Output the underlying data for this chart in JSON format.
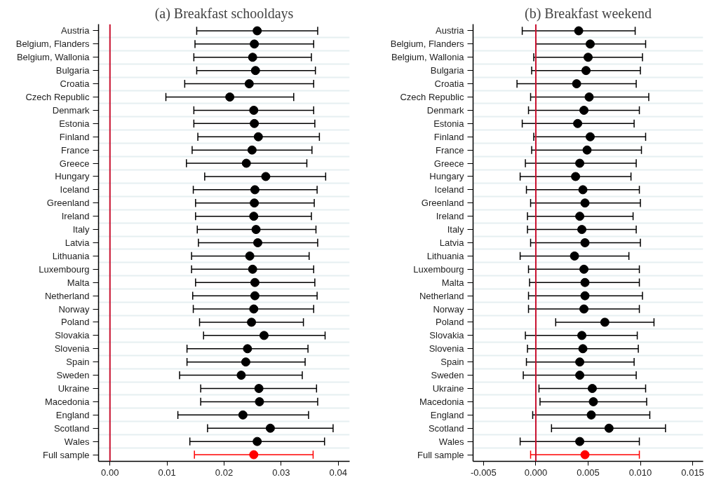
{
  "chart_data": [
    {
      "type": "scatter",
      "orientation": "horizontal",
      "title": "(a) Breakfast schooldays",
      "marker": "circle",
      "grid": "y",
      "categories": [
        "Austria",
        "Belgium, Flanders",
        "Belgium, Wallonia",
        "Bulgaria",
        "Croatia",
        "Czech Republic",
        "Denmark",
        "Estonia",
        "Finland",
        "France",
        "Greece",
        "Hungary",
        "Iceland",
        "Greenland",
        "Ireland",
        "Italy",
        "Latvia",
        "Lithuania",
        "Luxembourg",
        "Malta",
        "Netherland",
        "Norway",
        "Poland",
        "Slovakia",
        "Slovenia",
        "Spain",
        "Sweden",
        "Ukraine",
        "Macedonia",
        "England",
        "Scotland",
        "Wales",
        "Full sample"
      ],
      "series": [
        {
          "color": "#000000",
          "values": [
            0.0258,
            0.0253,
            0.025,
            0.0255,
            0.0244,
            0.021,
            0.0252,
            0.0253,
            0.026,
            0.0249,
            0.0239,
            0.0273,
            0.0254,
            0.0253,
            0.0252,
            0.0256,
            0.0259,
            0.0245,
            0.025,
            0.0254,
            0.0254,
            0.0252,
            0.0248,
            0.027,
            0.0241,
            0.0238,
            0.023,
            0.0261,
            0.0262,
            0.0233,
            0.0281,
            0.0258,
            null
          ],
          "errors": [
            [
              0.0152,
              0.0364
            ],
            [
              0.0149,
              0.0357
            ],
            [
              0.0147,
              0.0353
            ],
            [
              0.0152,
              0.036
            ],
            [
              0.0131,
              0.0357
            ],
            [
              0.0098,
              0.0322
            ],
            [
              0.0147,
              0.0357
            ],
            [
              0.0147,
              0.0359
            ],
            [
              0.0154,
              0.0367
            ],
            [
              0.0144,
              0.0354
            ],
            [
              0.0134,
              0.0345
            ],
            [
              0.0166,
              0.0378
            ],
            [
              0.0146,
              0.0363
            ],
            [
              0.015,
              0.0358
            ],
            [
              0.015,
              0.0353
            ],
            [
              0.0153,
              0.0361
            ],
            [
              0.0155,
              0.0364
            ],
            [
              0.0143,
              0.0349
            ],
            [
              0.0143,
              0.0357
            ],
            [
              0.015,
              0.0359
            ],
            [
              0.0145,
              0.0363
            ],
            [
              0.0146,
              0.0357
            ],
            [
              0.0157,
              0.0339
            ],
            [
              0.0164,
              0.0377
            ],
            [
              0.0135,
              0.0347
            ],
            [
              0.0135,
              0.0342
            ],
            [
              0.0122,
              0.0337
            ],
            [
              0.0159,
              0.0362
            ],
            [
              0.0159,
              0.0364
            ],
            [
              0.0119,
              0.0348
            ],
            [
              0.0171,
              0.0391
            ],
            [
              0.014,
              0.0376
            ],
            null
          ]
        },
        {
          "color": "#ff0000",
          "values": [
            null,
            null,
            null,
            null,
            null,
            null,
            null,
            null,
            null,
            null,
            null,
            null,
            null,
            null,
            null,
            null,
            null,
            null,
            null,
            null,
            null,
            null,
            null,
            null,
            null,
            null,
            null,
            null,
            null,
            null,
            null,
            null,
            0.0252
          ],
          "errors": [
            null,
            null,
            null,
            null,
            null,
            null,
            null,
            null,
            null,
            null,
            null,
            null,
            null,
            null,
            null,
            null,
            null,
            null,
            null,
            null,
            null,
            null,
            null,
            null,
            null,
            null,
            null,
            null,
            null,
            null,
            null,
            null,
            [
              0.0148,
              0.0356
            ]
          ]
        }
      ],
      "xlim": [
        -0.002,
        0.042
      ],
      "xticks": [
        {
          "value": 0,
          "label": "0.00"
        },
        0.01,
        0.02,
        0.03,
        0.04
      ],
      "ref_lines": [
        {
          "axis": "x",
          "value": 0,
          "color": "#c8102e"
        }
      ]
    },
    {
      "type": "scatter",
      "orientation": "horizontal",
      "title": "(b) Breakfast weekend",
      "marker": "circle",
      "grid": "y",
      "categories": [
        "Austria",
        "Belgium, Flanders",
        "Belgium, Wallonia",
        "Bulgaria",
        "Croatia",
        "Czech Republic",
        "Denmark",
        "Estonia",
        "Finland",
        "France",
        "Greece",
        "Hungary",
        "Iceland",
        "Greenland",
        "Ireland",
        "Italy",
        "Latvia",
        "Lithuania",
        "Luxembourg",
        "Malta",
        "Netherland",
        "Norway",
        "Poland",
        "Slovakia",
        "Slovenia",
        "Spain",
        "Sweden",
        "Ukraine",
        "Macedonia",
        "England",
        "Scotland",
        "Wales",
        "Full sample"
      ],
      "series": [
        {
          "color": "#000000",
          "values": [
            0.0041,
            0.0052,
            0.005,
            0.0048,
            0.0039,
            0.0051,
            0.0046,
            0.004,
            0.0052,
            0.0049,
            0.0042,
            0.0038,
            0.0045,
            0.0047,
            0.0042,
            0.0044,
            0.0047,
            0.0037,
            0.0046,
            0.0047,
            0.0047,
            0.0046,
            0.0066,
            0.0044,
            0.0045,
            0.0042,
            0.0042,
            0.0054,
            0.0055,
            0.0053,
            0.007,
            0.0042,
            null
          ],
          "errors": [
            [
              -0.0013,
              0.0095
            ],
            [
              0.0,
              0.0105
            ],
            [
              -0.0002,
              0.0102
            ],
            [
              -0.0004,
              0.01
            ],
            [
              -0.0018,
              0.0096
            ],
            [
              -0.0005,
              0.0108
            ],
            [
              -0.0007,
              0.0099
            ],
            [
              -0.0013,
              0.0094
            ],
            [
              -0.0002,
              0.0105
            ],
            [
              -0.0004,
              0.0101
            ],
            [
              -0.001,
              0.0096
            ],
            [
              -0.0015,
              0.0091
            ],
            [
              -0.0009,
              0.0099
            ],
            [
              -0.0005,
              0.01
            ],
            [
              -0.0008,
              0.0093
            ],
            [
              -0.0008,
              0.0096
            ],
            [
              -0.0005,
              0.01
            ],
            [
              -0.0015,
              0.0089
            ],
            [
              -0.0007,
              0.0099
            ],
            [
              -0.0006,
              0.0099
            ],
            [
              -0.0007,
              0.0102
            ],
            [
              -0.0007,
              0.0099
            ],
            [
              0.0019,
              0.0113
            ],
            [
              -0.001,
              0.0097
            ],
            [
              -0.0008,
              0.0098
            ],
            [
              -0.0009,
              0.0094
            ],
            [
              -0.0012,
              0.0096
            ],
            [
              0.0003,
              0.0105
            ],
            [
              0.0004,
              0.0106
            ],
            [
              -0.0003,
              0.0109
            ],
            [
              0.0015,
              0.0124
            ],
            [
              -0.0015,
              0.0099
            ],
            null
          ]
        },
        {
          "color": "#ff0000",
          "values": [
            null,
            null,
            null,
            null,
            null,
            null,
            null,
            null,
            null,
            null,
            null,
            null,
            null,
            null,
            null,
            null,
            null,
            null,
            null,
            null,
            null,
            null,
            null,
            null,
            null,
            null,
            null,
            null,
            null,
            null,
            null,
            null,
            0.0047
          ],
          "errors": [
            null,
            null,
            null,
            null,
            null,
            null,
            null,
            null,
            null,
            null,
            null,
            null,
            null,
            null,
            null,
            null,
            null,
            null,
            null,
            null,
            null,
            null,
            null,
            null,
            null,
            null,
            null,
            null,
            null,
            null,
            null,
            null,
            [
              -0.0005,
              0.0099
            ]
          ]
        }
      ],
      "xlim": [
        -0.006,
        0.016
      ],
      "xticks": [
        {
          "value": -0.005,
          "label": "-0.005"
        },
        {
          "value": 0,
          "label": "0.000"
        },
        {
          "value": 0.005,
          "label": "0.005"
        },
        {
          "value": 0.01,
          "label": "0.010"
        },
        {
          "value": 0.015,
          "label": "0.015"
        }
      ],
      "ref_lines": [
        {
          "axis": "x",
          "value": 0,
          "color": "#c8102e"
        }
      ]
    }
  ]
}
